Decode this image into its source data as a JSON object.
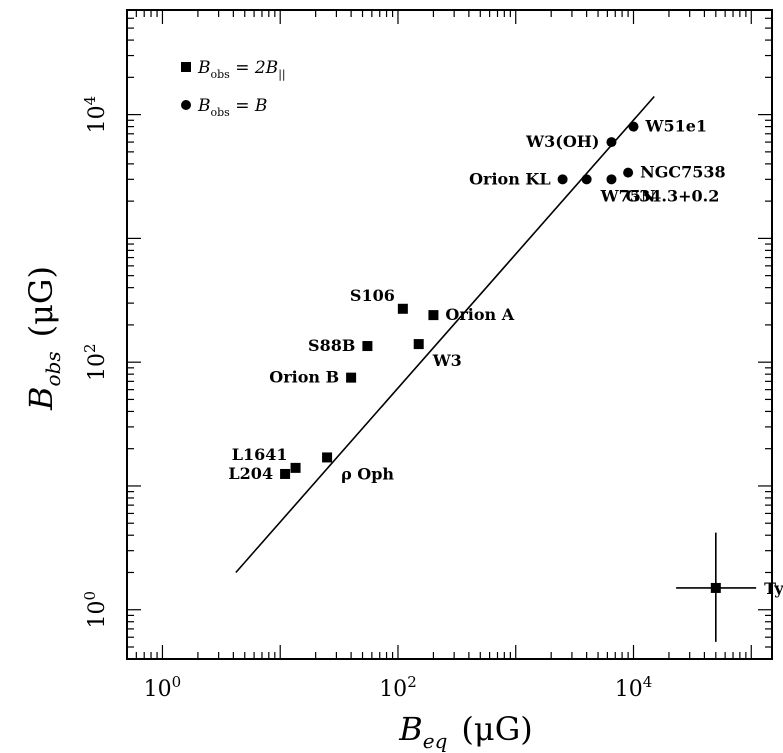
{
  "chart_data": {
    "type": "scatter",
    "title": "",
    "xlabel_main": "B",
    "xlabel_sub": "eq",
    "xlabel_unit": "(μG)",
    "ylabel_main": "B",
    "ylabel_sub": "obs",
    "ylabel_unit": "(μG)",
    "xscale": "log",
    "yscale": "log",
    "xlim": [
      0.5,
      150000
    ],
    "ylim": [
      0.4,
      70000
    ],
    "x_ticks": [
      {
        "value": 1,
        "base": "10",
        "exp": "0"
      },
      {
        "value": 100,
        "base": "10",
        "exp": "2"
      },
      {
        "value": 10000,
        "base": "10",
        "exp": "4"
      }
    ],
    "y_ticks": [
      {
        "value": 1,
        "base": "10",
        "exp": "0"
      },
      {
        "value": 100,
        "base": "10",
        "exp": "2"
      },
      {
        "value": 10000,
        "base": "10",
        "exp": "4"
      }
    ],
    "grid": false,
    "legend_position": "top-left",
    "legend": [
      {
        "marker": "square",
        "text_main": "B",
        "text_sub": "obs",
        "text_rest": " = 2B",
        "text_sub2": "||"
      },
      {
        "marker": "circle",
        "text_main": "B",
        "text_sub": "obs",
        "text_rest": " = B",
        "text_sub2": ""
      }
    ],
    "series": [
      {
        "marker": "square",
        "points": [
          {
            "label": "L204",
            "x": 11,
            "y": 12.5,
            "label_side": "left"
          },
          {
            "label": "L1641",
            "x": 13.5,
            "y": 14,
            "label_side": "upper-left"
          },
          {
            "label": "ρ Oph",
            "x": 25,
            "y": 17,
            "label_side": "lower-right"
          },
          {
            "label": "Orion B",
            "x": 40,
            "y": 75,
            "label_side": "left"
          },
          {
            "label": "S88B",
            "x": 55,
            "y": 135,
            "label_side": "left"
          },
          {
            "label": "S106",
            "x": 110,
            "y": 270,
            "label_side": "upper-left"
          },
          {
            "label": "Orion A",
            "x": 200,
            "y": 240,
            "label_side": "right"
          },
          {
            "label": "W3",
            "x": 150,
            "y": 140,
            "label_side": "lower-right"
          }
        ]
      },
      {
        "marker": "circle",
        "points": [
          {
            "label": "Orion KL",
            "x": 2500,
            "y": 3000,
            "label_side": "left"
          },
          {
            "label": "W75N",
            "x": 4000,
            "y": 3000,
            "label_side": "lower-right"
          },
          {
            "label": "W3(OH)",
            "x": 6500,
            "y": 6000,
            "label_side": "left"
          },
          {
            "label": "G34.3+0.2",
            "x": 6500,
            "y": 3000,
            "label_side": "lower-right"
          },
          {
            "label": "NGC7538",
            "x": 9000,
            "y": 3400,
            "label_side": "right"
          },
          {
            "label": "W51e1",
            "x": 10000,
            "y": 8000,
            "label_side": "right"
          }
        ]
      }
    ],
    "fit_line": {
      "x": [
        4.2,
        15000
      ],
      "y": [
        2.0,
        14000
      ]
    },
    "annotation": {
      "text": "Typical Error",
      "x": 50000,
      "y": 1.5,
      "x_err": [
        23000,
        110000
      ],
      "y_err": [
        0.55,
        4.2
      ]
    }
  }
}
